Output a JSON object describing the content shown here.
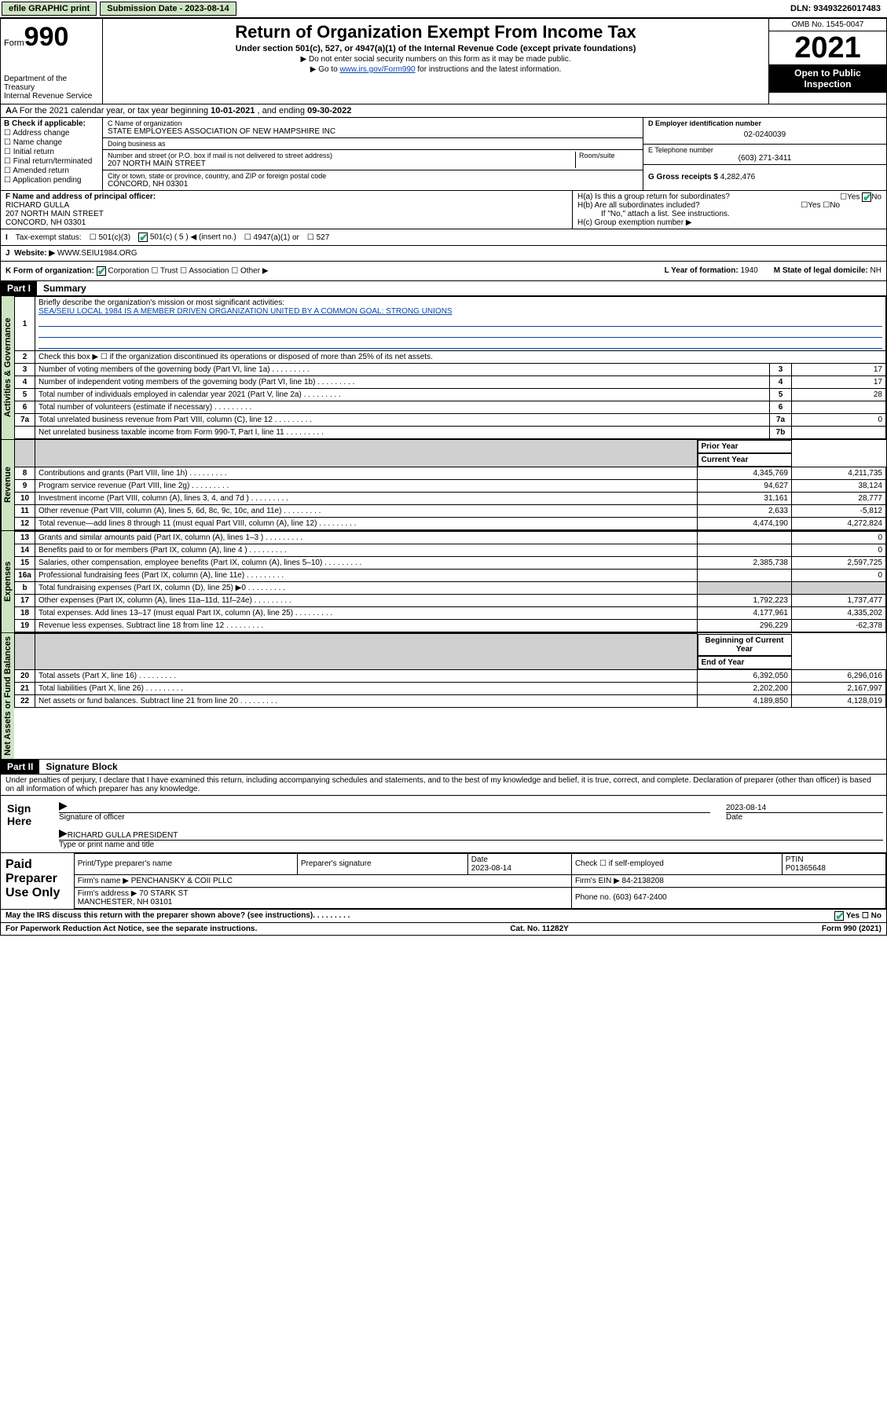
{
  "topbar": {
    "efile": "efile GRAPHIC print",
    "sub_label": "Submission Date - 2023-08-14",
    "dln": "DLN: 93493226017483"
  },
  "header": {
    "form_prefix": "Form",
    "form_no": "990",
    "dept": "Department of the Treasury\nInternal Revenue Service",
    "title": "Return of Organization Exempt From Income Tax",
    "sub1": "Under section 501(c), 527, or 4947(a)(1) of the Internal Revenue Code (except private foundations)",
    "sub2a": "▶ Do not enter social security numbers on this form as it may be made public.",
    "sub2b_pre": "▶ Go to ",
    "sub2b_link": "www.irs.gov/Form990",
    "sub2b_post": " for instructions and the latest information.",
    "omb": "OMB No. 1545-0047",
    "year": "2021",
    "open": "Open to Public Inspection"
  },
  "rowA": {
    "text_pre": "A For the 2021 calendar year, or tax year beginning ",
    "begin": "10-01-2021",
    "mid": " , and ending ",
    "end": "09-30-2022"
  },
  "boxB": {
    "heading": "B Check if applicable:",
    "items": [
      "Address change",
      "Name change",
      "Initial return",
      "Final return/terminated",
      "Amended return",
      "Application pending"
    ]
  },
  "boxC": {
    "name_lbl": "C Name of organization",
    "name": "STATE EMPLOYEES ASSOCIATION OF NEW HAMPSHIRE INC",
    "dba_lbl": "Doing business as",
    "dba": "",
    "street_lbl": "Number and street (or P.O. box if mail is not delivered to street address)",
    "room_lbl": "Room/suite",
    "street": "207 NORTH MAIN STREET",
    "city_lbl": "City or town, state or province, country, and ZIP or foreign postal code",
    "city": "CONCORD, NH  03301"
  },
  "boxD": {
    "lbl": "D Employer identification number",
    "val": "02-0240039"
  },
  "boxE": {
    "lbl": "E Telephone number",
    "val": "(603) 271-3411"
  },
  "boxG": {
    "lbl": "G Gross receipts $",
    "val": "4,282,476"
  },
  "boxF": {
    "lbl": "F Name and address of principal officer:",
    "name": "RICHARD GULLA",
    "addr1": "207 NORTH MAIN STREET",
    "addr2": "CONCORD, NH  03301"
  },
  "boxH": {
    "a_lbl": "H(a)  Is this a group return for subordinates?",
    "a_yes": "Yes",
    "a_no": "No",
    "b_lbl": "H(b)  Are all subordinates included?",
    "b_note": "If \"No,\" attach a list. See instructions.",
    "c_lbl": "H(c)  Group exemption number ▶"
  },
  "rowI": {
    "lbl": "Tax-exempt status:",
    "o1": "501(c)(3)",
    "o2": "501(c) ( 5 ) ◀ (insert no.)",
    "o3": "4947(a)(1) or",
    "o4": "527"
  },
  "rowJ": {
    "lbl": "Website: ▶",
    "val": "WWW.SEIU1984.ORG"
  },
  "rowK": {
    "lbl": "K Form of organization:",
    "opts": [
      "Corporation",
      "Trust",
      "Association",
      "Other ▶"
    ],
    "L_lbl": "L Year of formation:",
    "L_val": "1940",
    "M_lbl": "M State of legal domicile:",
    "M_val": "NH"
  },
  "part1": {
    "hdr": "Part I",
    "title": "Summary",
    "line1_lbl": "Briefly describe the organization's mission or most significant activities:",
    "line1_val": "SEA/SEIU LOCAL 1984 IS A MEMBER DRIVEN ORGANIZATION UNITED BY A COMMON GOAL: STRONG UNIONS",
    "line2": "Check this box ▶ ☐ if the organization discontinued its operations or disposed of more than 25% of its net assets.",
    "sidetabs": {
      "gov": "Activities & Governance",
      "rev": "Revenue",
      "exp": "Expenses",
      "net": "Net Assets or Fund Balances"
    },
    "cols": {
      "prior": "Prior Year",
      "current": "Current Year",
      "boy": "Beginning of Current Year",
      "eoy": "End of Year"
    },
    "gov_rows": [
      {
        "n": "3",
        "d": "Number of voting members of the governing body (Part VI, line 1a)",
        "box": "3",
        "v": "17"
      },
      {
        "n": "4",
        "d": "Number of independent voting members of the governing body (Part VI, line 1b)",
        "box": "4",
        "v": "17"
      },
      {
        "n": "5",
        "d": "Total number of individuals employed in calendar year 2021 (Part V, line 2a)",
        "box": "5",
        "v": "28"
      },
      {
        "n": "6",
        "d": "Total number of volunteers (estimate if necessary)",
        "box": "6",
        "v": ""
      },
      {
        "n": "7a",
        "d": "Total unrelated business revenue from Part VIII, column (C), line 12",
        "box": "7a",
        "v": "0"
      },
      {
        "n": "",
        "d": "Net unrelated business taxable income from Form 990-T, Part I, line 11",
        "box": "7b",
        "v": ""
      }
    ],
    "rev_rows": [
      {
        "n": "8",
        "d": "Contributions and grants (Part VIII, line 1h)",
        "p": "4,345,769",
        "c": "4,211,735"
      },
      {
        "n": "9",
        "d": "Program service revenue (Part VIII, line 2g)",
        "p": "94,627",
        "c": "38,124"
      },
      {
        "n": "10",
        "d": "Investment income (Part VIII, column (A), lines 3, 4, and 7d )",
        "p": "31,161",
        "c": "28,777"
      },
      {
        "n": "11",
        "d": "Other revenue (Part VIII, column (A), lines 5, 6d, 8c, 9c, 10c, and 11e)",
        "p": "2,633",
        "c": "-5,812"
      },
      {
        "n": "12",
        "d": "Total revenue—add lines 8 through 11 (must equal Part VIII, column (A), line 12)",
        "p": "4,474,190",
        "c": "4,272,824"
      }
    ],
    "exp_rows": [
      {
        "n": "13",
        "d": "Grants and similar amounts paid (Part IX, column (A), lines 1–3 )",
        "p": "",
        "c": "0"
      },
      {
        "n": "14",
        "d": "Benefits paid to or for members (Part IX, column (A), line 4 )",
        "p": "",
        "c": "0"
      },
      {
        "n": "15",
        "d": "Salaries, other compensation, employee benefits (Part IX, column (A), lines 5–10)",
        "p": "2,385,738",
        "c": "2,597,725"
      },
      {
        "n": "16a",
        "d": "Professional fundraising fees (Part IX, column (A), line 11e)",
        "p": "",
        "c": "0"
      },
      {
        "n": "b",
        "d": "Total fundraising expenses (Part IX, column (D), line 25) ▶0",
        "p": "grey",
        "c": "grey"
      },
      {
        "n": "17",
        "d": "Other expenses (Part IX, column (A), lines 11a–11d, 11f–24e)",
        "p": "1,792,223",
        "c": "1,737,477"
      },
      {
        "n": "18",
        "d": "Total expenses. Add lines 13–17 (must equal Part IX, column (A), line 25)",
        "p": "4,177,961",
        "c": "4,335,202"
      },
      {
        "n": "19",
        "d": "Revenue less expenses. Subtract line 18 from line 12",
        "p": "296,229",
        "c": "-62,378"
      }
    ],
    "net_rows": [
      {
        "n": "20",
        "d": "Total assets (Part X, line 16)",
        "p": "6,392,050",
        "c": "6,296,016"
      },
      {
        "n": "21",
        "d": "Total liabilities (Part X, line 26)",
        "p": "2,202,200",
        "c": "2,167,997"
      },
      {
        "n": "22",
        "d": "Net assets or fund balances. Subtract line 21 from line 20",
        "p": "4,189,850",
        "c": "4,128,019"
      }
    ]
  },
  "part2": {
    "hdr": "Part II",
    "title": "Signature Block",
    "decl": "Under penalties of perjury, I declare that I have examined this return, including accompanying schedules and statements, and to the best of my knowledge and belief, it is true, correct, and complete. Declaration of preparer (other than officer) is based on all information of which preparer has any knowledge.",
    "sign_here": "Sign Here",
    "sig_officer": "Signature of officer",
    "date_lbl": "Date",
    "date": "2023-08-14",
    "name_title": "RICHARD GULLA  PRESIDENT",
    "name_title_lbl": "Type or print name and title"
  },
  "prep": {
    "lbl": "Paid Preparer Use Only",
    "h_name": "Print/Type preparer's name",
    "h_sig": "Preparer's signature",
    "h_date": "Date",
    "h_self": "Check ☐ if self-employed",
    "h_ptin": "PTIN",
    "date": "2023-08-14",
    "ptin": "P01365648",
    "firm_name_lbl": "Firm's name   ▶",
    "firm_name": "PENCHANSKY & COII PLLC",
    "firm_ein_lbl": "Firm's EIN ▶",
    "firm_ein": "84-2138208",
    "firm_addr_lbl": "Firm's address ▶",
    "firm_addr": "70 STARK ST\nMANCHESTER, NH  03101",
    "phone_lbl": "Phone no.",
    "phone": "(603) 647-2400"
  },
  "footer": {
    "discuss": "May the IRS discuss this return with the preparer shown above? (see instructions)",
    "yes": "Yes",
    "no": "No",
    "pra": "For Paperwork Reduction Act Notice, see the separate instructions.",
    "cat": "Cat. No. 11282Y",
    "form": "Form 990 (2021)"
  }
}
